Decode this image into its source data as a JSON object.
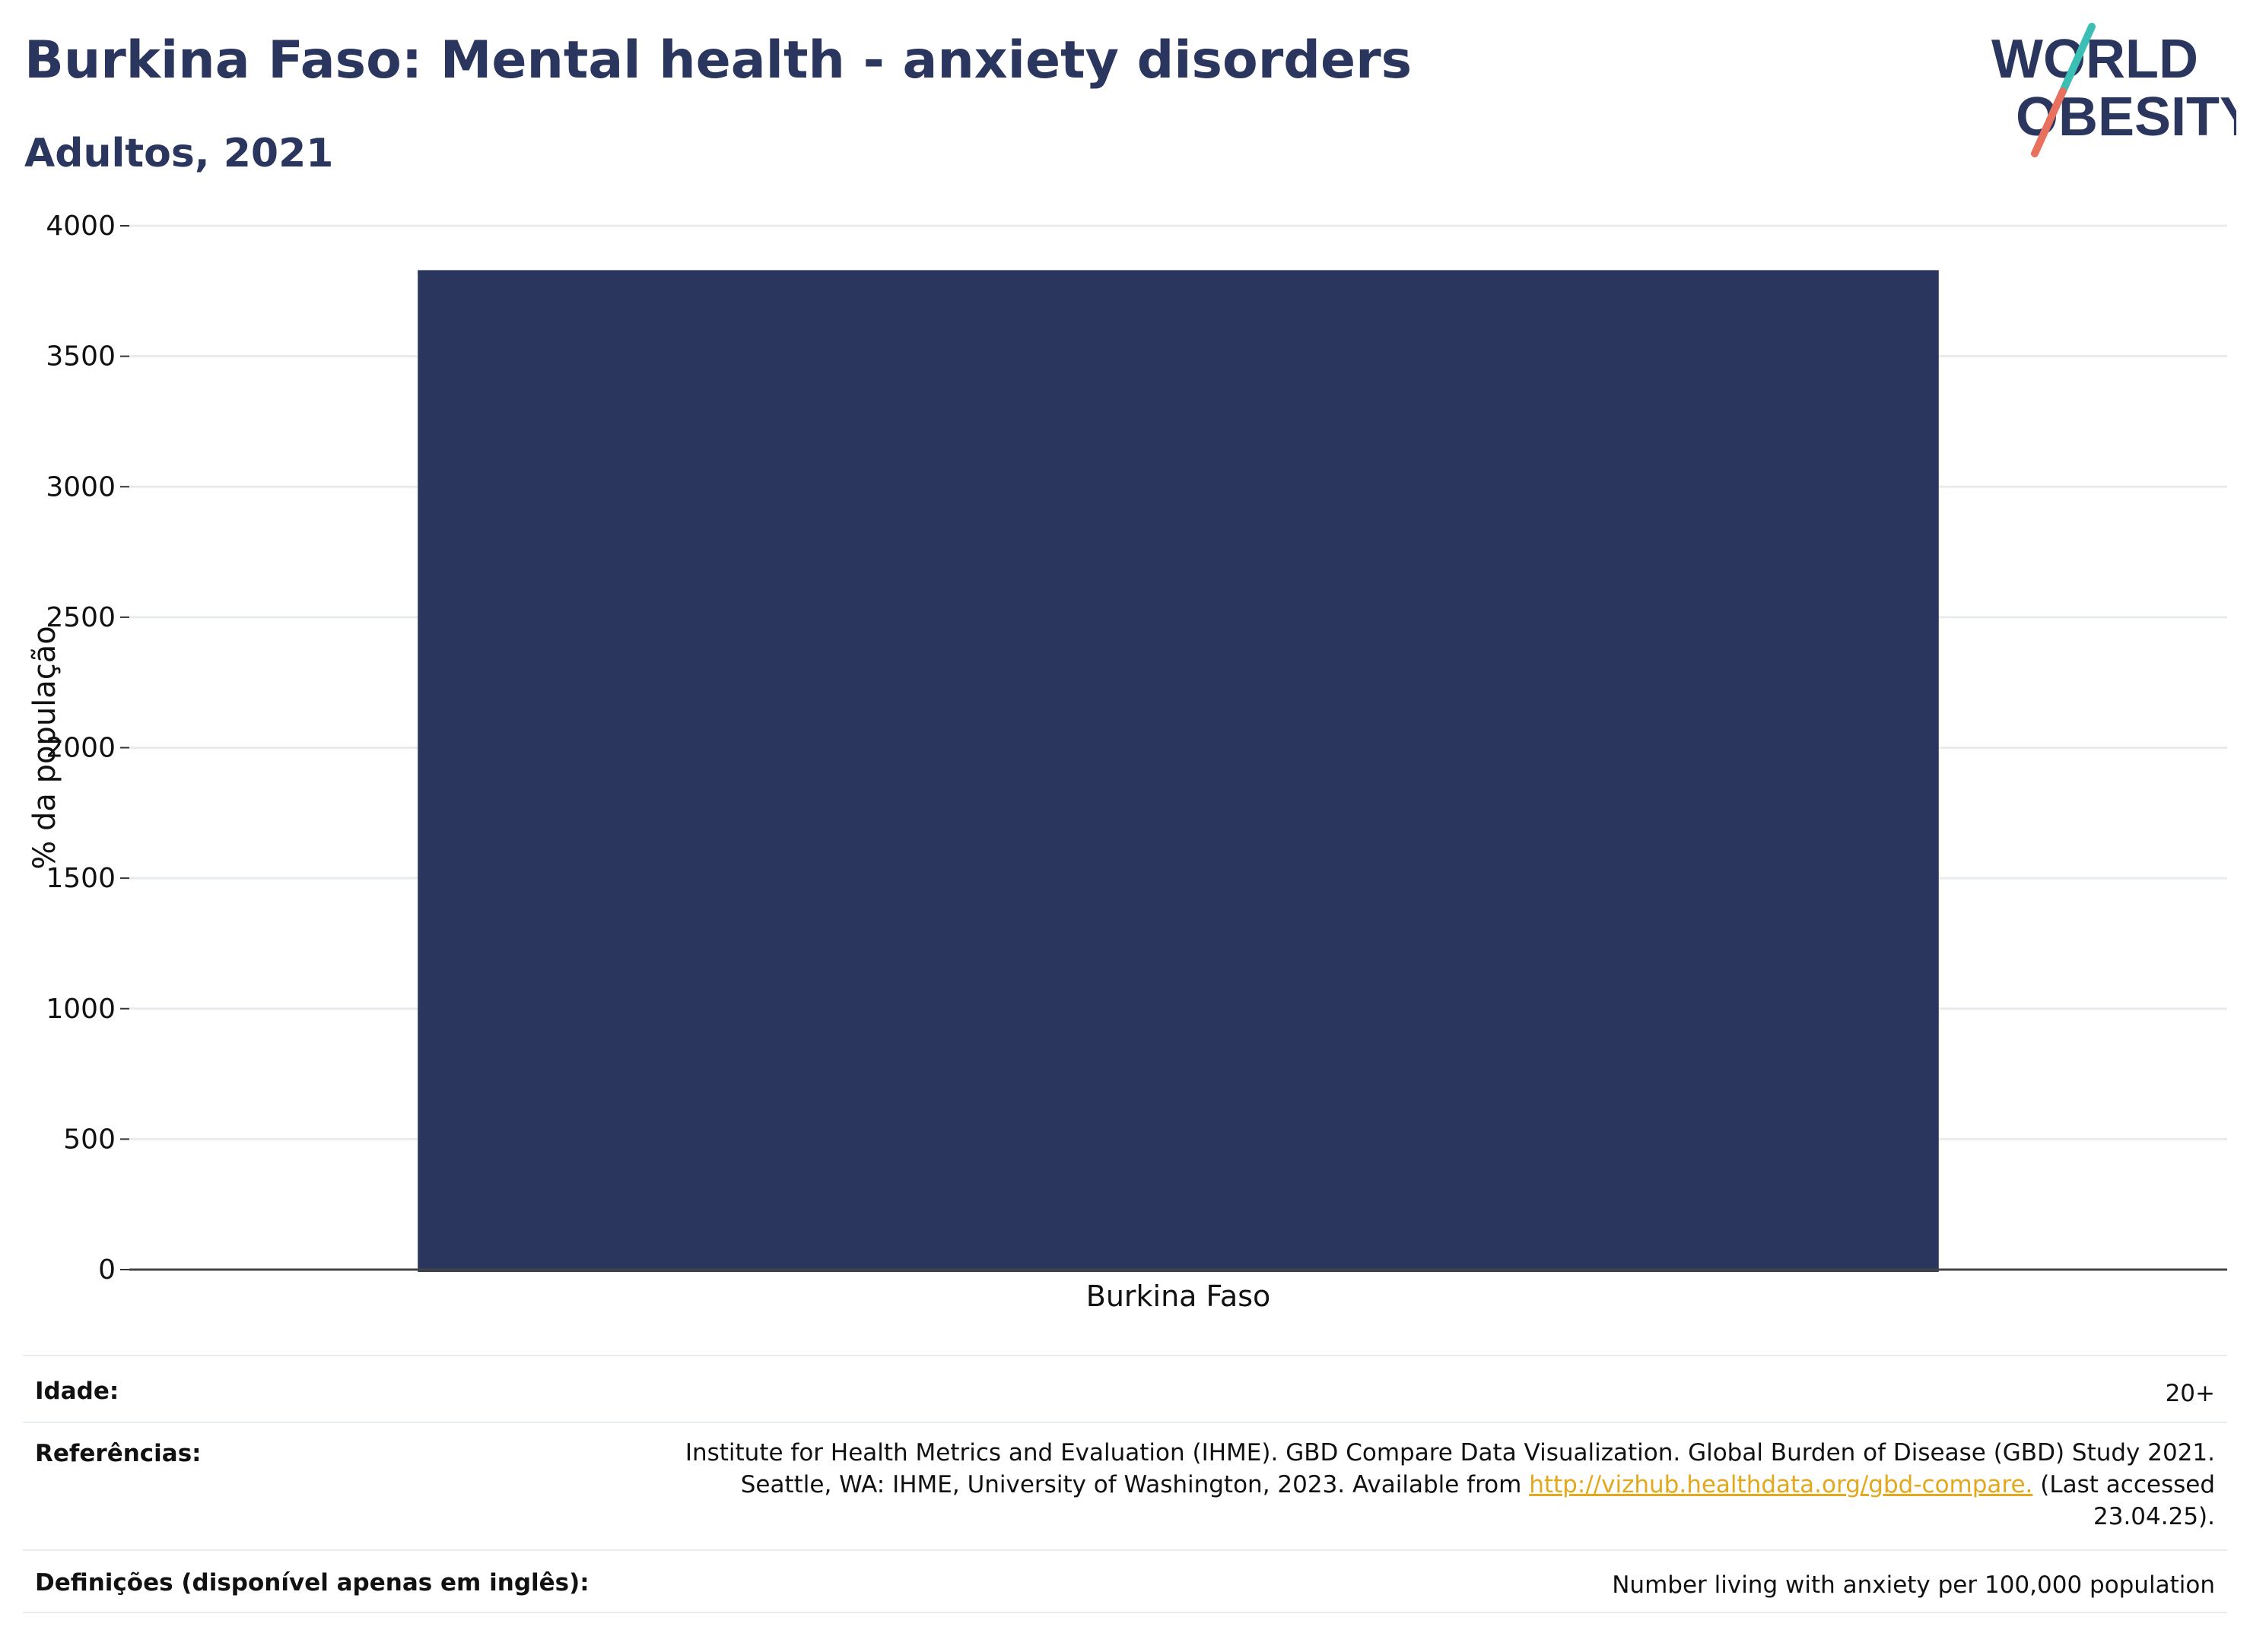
{
  "header": {
    "title": "Burkina Faso: Mental health - anxiety disorders",
    "subtitle": "Adultos, 2021"
  },
  "logo": {
    "line1": "WORLD",
    "line2": "OBESITY",
    "text_color": "#2b365f",
    "stroke_top_color": "#3bbfb5",
    "stroke_bottom_color": "#e8705f"
  },
  "chart_data": {
    "type": "bar",
    "categories": [
      "Burkina Faso"
    ],
    "values": [
      3830
    ],
    "title": "",
    "xlabel": "",
    "ylabel": "% da população",
    "ylim": [
      0,
      4000
    ],
    "yticks": [
      0,
      500,
      1000,
      1500,
      2000,
      2500,
      3000,
      3500,
      4000
    ],
    "grid": true,
    "bar_color": "#2b365f"
  },
  "info": {
    "age_label": "Idade:",
    "age_value": "20+",
    "references_label": "Referências:",
    "references_line1": "Institute for Health Metrics and Evaluation (IHME). GBD Compare Data Visualization. Global Burden of Disease (GBD) Study 2021.",
    "references_line2_before": "Seattle, WA: IHME, University of Washington, 2023. Available from ",
    "references_link": "http://vizhub.healthdata.org/gbd-compare.",
    "references_line2_after": " (Last accessed",
    "references_line3": "23.04.25).",
    "definitions_label": "Definições (disponível apenas em inglês):",
    "definitions_value": "Number living with anxiety per 100,000 population"
  }
}
